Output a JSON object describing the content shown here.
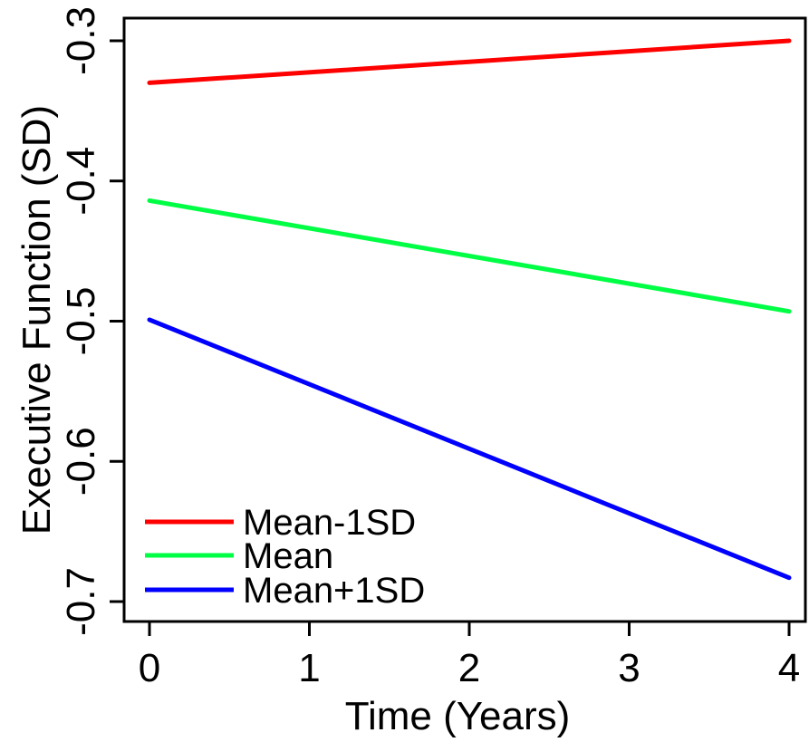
{
  "chart_data": {
    "type": "line",
    "xlabel": "Time (Years)",
    "ylabel": "Executive Function (SD)",
    "xlim": [
      0,
      4
    ],
    "ylim": [
      -0.7,
      -0.3
    ],
    "xticks": [
      0,
      1,
      2,
      3,
      4
    ],
    "xtick_labels": [
      "0",
      "1",
      "2",
      "3",
      "4"
    ],
    "yticks": [
      -0.7,
      -0.6,
      -0.5,
      -0.4,
      -0.3
    ],
    "ytick_labels": [
      "-0.7",
      "-0.6",
      "-0.5",
      "-0.4",
      "-0.3"
    ],
    "grid": false,
    "legend_position": "bottom-left",
    "series": [
      {
        "name": "Mean-1SD",
        "color": "#ff0000",
        "x": [
          0,
          4
        ],
        "y": [
          -0.33,
          -0.3
        ]
      },
      {
        "name": "Mean",
        "color": "#00ff44",
        "x": [
          0,
          4
        ],
        "y": [
          -0.414,
          -0.493
        ]
      },
      {
        "name": "Mean+1SD",
        "color": "#0000ff",
        "x": [
          0,
          4
        ],
        "y": [
          -0.499,
          -0.683
        ]
      }
    ]
  }
}
